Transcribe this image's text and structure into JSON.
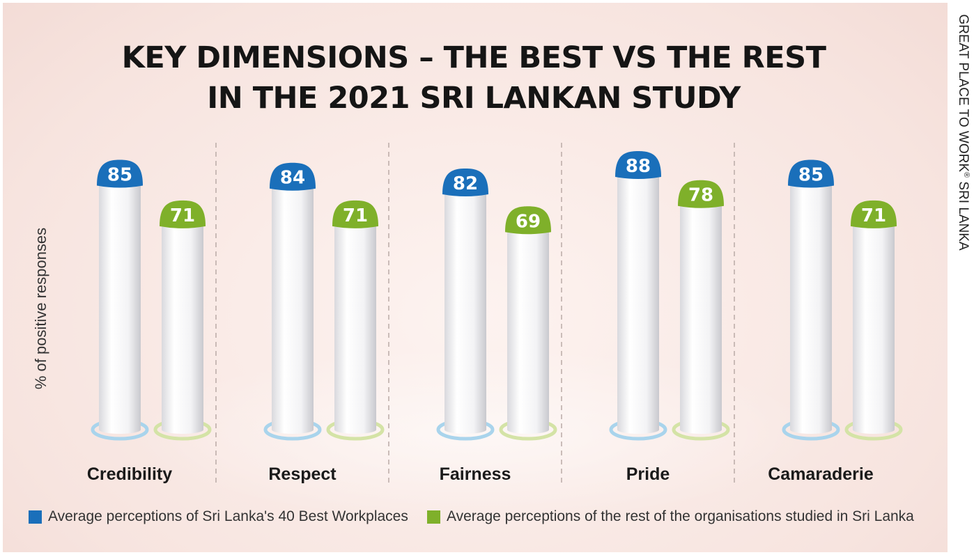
{
  "title_line1": "KEY DIMENSIONS – THE BEST VS THE REST",
  "title_line2": "IN THE 2021 SRI LANKAN STUDY",
  "side_label": "GREAT PLACE TO WORK",
  "side_label_mark": "®",
  "side_label_end": " SRI LANKA",
  "colors": {
    "best": "#1a6fba",
    "rest": "#7fb02a"
  },
  "chart_data": {
    "type": "bar",
    "ylabel": "% of positive responses",
    "categories": [
      "Credibility",
      "Respect",
      "Fairness",
      "Pride",
      "Camaraderie"
    ],
    "series": [
      {
        "name": "Average perceptions of Sri Lanka's 40 Best Workplaces",
        "values": [
          85,
          84,
          82,
          88,
          85
        ]
      },
      {
        "name": "Average perceptions of the rest of the organisations studied in Sri Lanka",
        "values": [
          71,
          71,
          69,
          78,
          71
        ]
      }
    ],
    "grid": false,
    "legend": "bottom"
  }
}
